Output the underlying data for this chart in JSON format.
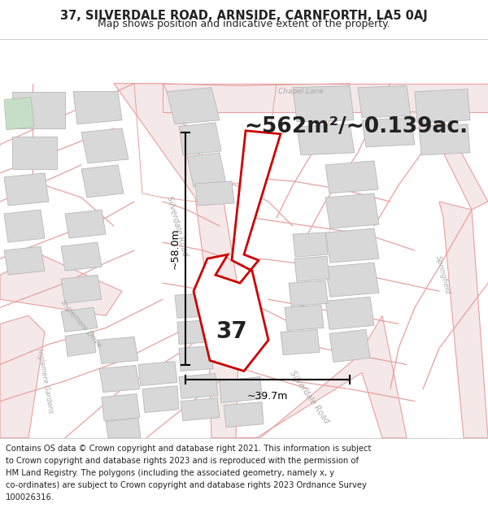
{
  "title_line1": "37, SILVERDALE ROAD, ARNSIDE, CARNFORTH, LA5 0AJ",
  "title_line2": "Map shows position and indicative extent of the property.",
  "area_text": "~562m²/~0.139ac.",
  "width_label": "~39.7m",
  "height_label": "~58.0m",
  "property_number": "37",
  "footer_lines": [
    "Contains OS data © Crown copyright and database right 2021. This information is subject",
    "to Crown copyright and database rights 2023 and is reproduced with the permission of",
    "HM Land Registry. The polygons (including the associated geometry, namely x, y",
    "co-ordinates) are subject to Crown copyright and database rights 2023 Ordnance Survey",
    "100026316."
  ],
  "bg_color": "#f0f0f0",
  "map_bg": "#ffffff",
  "road_line_color": "#e8a0a0",
  "road_fill_color": "#f5e8e8",
  "building_color": "#d8d8d8",
  "building_edge": "#b8b8b8",
  "green_patch": "#c8ddc8",
  "property_fill": "#ffffff",
  "property_edge": "#cc0000",
  "dim_line_color": "#000000",
  "text_color": "#222222",
  "road_label_color": "#aaaaaa",
  "title_fontsize": 10.5,
  "subtitle_fontsize": 9,
  "area_fontsize": 19,
  "number_fontsize": 20,
  "dim_fontsize": 9,
  "footer_fontsize": 7.2,
  "road_label_fontsize": 7
}
